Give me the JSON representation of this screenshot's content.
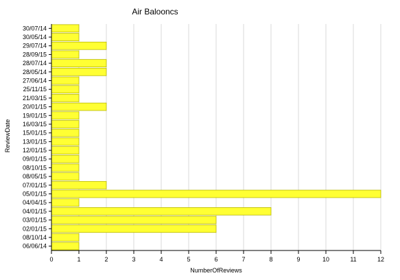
{
  "chart_data": {
    "type": "bar",
    "orientation": "horizontal",
    "title": "Air Balooncs",
    "xlabel": "NumberOfReviews",
    "ylabel": "ReviewDate",
    "xlim": [
      0,
      12
    ],
    "x_ticks": [
      0,
      1,
      2,
      3,
      4,
      5,
      6,
      7,
      8,
      9,
      10,
      11,
      12
    ],
    "grid": "vertical",
    "bar_color": "#ffff33",
    "categories": [
      "30/07/14",
      "30/05/14",
      "29/07/14",
      "28/09/15",
      "28/07/14",
      "28/05/14",
      "27/06/14",
      "25/11/15",
      "21/03/15",
      "20/01/15",
      "19/01/15",
      "16/03/15",
      "15/01/15",
      "13/01/15",
      "12/01/15",
      "09/01/15",
      "08/10/15",
      "08/05/15",
      "07/01/15",
      "05/01/15",
      "04/04/15",
      "04/01/15",
      "03/01/15",
      "02/01/15",
      "08/10/14",
      "06/06/14"
    ],
    "values": [
      1,
      1,
      2,
      1,
      2,
      2,
      1,
      1,
      1,
      2,
      1,
      1,
      1,
      1,
      1,
      1,
      1,
      1,
      2,
      12,
      1,
      8,
      6,
      6,
      1,
      1
    ]
  }
}
